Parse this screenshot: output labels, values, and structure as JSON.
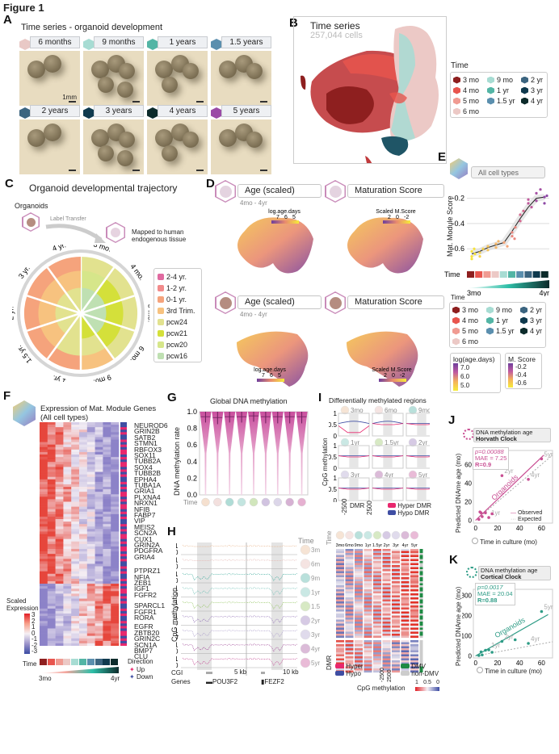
{
  "figure_title": "Figure 1",
  "panels": {
    "A": {
      "label": "A",
      "title": "Time series - organoid development",
      "scale_label": "1mm",
      "timepoints": [
        {
          "label": "6 months",
          "color": "#e9c9c6"
        },
        {
          "label": "9 months",
          "color": "#a7dcd3"
        },
        {
          "label": "1 years",
          "color": "#53b5a5"
        },
        {
          "label": "1.5 years",
          "color": "#5b8fae"
        },
        {
          "label": "2 years",
          "color": "#3c6580"
        },
        {
          "label": "3 years",
          "color": "#0f3a4e"
        },
        {
          "label": "4 years",
          "color": "#0c2b2b"
        },
        {
          "label": "5 years",
          "color": "#9b4aa6"
        }
      ]
    },
    "B": {
      "label": "B",
      "title": "Time series",
      "subtitle": "257,044 cells",
      "legend_title": "Time",
      "legend": [
        {
          "label": "3 mo",
          "color": "#8e1f1f"
        },
        {
          "label": "4 mo",
          "color": "#e8554e"
        },
        {
          "label": "5 mo",
          "color": "#f09b92"
        },
        {
          "label": "6 mo",
          "color": "#ecc9c6"
        },
        {
          "label": "9 mo",
          "color": "#a7dcd3"
        },
        {
          "label": "1 yr",
          "color": "#53b5a5"
        },
        {
          "label": "1.5 yr",
          "color": "#5b8fae"
        },
        {
          "label": "2 yr",
          "color": "#3c6580"
        },
        {
          "label": "3 yr",
          "color": "#0f3a4e"
        },
        {
          "label": "4 yr",
          "color": "#0c2b2b"
        }
      ]
    },
    "C": {
      "label": "C",
      "title": "Organoid developmental trajectory",
      "organoids_label": "Organoids",
      "transfer_label": "Label Transfer",
      "mapped_label": "Mapped to human endogenous tissue",
      "ring_labels": [
        "3 mo.",
        "4 mo.",
        "5 mo.",
        "6 mo.",
        "9 mo.",
        "1 yr.",
        "1.5 yr.",
        "2 yr.",
        "3 yr.",
        "4 yr."
      ],
      "legend": [
        {
          "label": "2-4 yr.",
          "color": "#e06aa0"
        },
        {
          "label": "1-2 yr.",
          "color": "#f28b8b"
        },
        {
          "label": "0-1 yr.",
          "color": "#f5a37c"
        },
        {
          "label": "3rd Trim.",
          "color": "#f7c27f"
        },
        {
          "label": "pcw24",
          "color": "#e2e28f"
        },
        {
          "label": "pcw21",
          "color": "#d4e03a"
        },
        {
          "label": "pcw20",
          "color": "#d6e68a"
        },
        {
          "label": "pcw16",
          "color": "#bfe0b2"
        }
      ]
    },
    "D": {
      "label": "D",
      "rows": [
        {
          "left_title": "Age (scaled)",
          "left_sub": "4mo - 4yr",
          "right_title": "Maturation Score",
          "left_scale_title": "log.age.days",
          "left_ticks": [
            "7",
            "6",
            "5"
          ],
          "right_scale_title": "Scaled M.Score",
          "right_ticks": [
            "2",
            "0",
            "-2"
          ]
        },
        {
          "left_title": "Age (scaled)",
          "left_sub": "4mo - 4yr",
          "right_title": "Maturation Score",
          "left_scale_title": "log.age.days",
          "left_ticks": [
            "7",
            "6",
            "5"
          ],
          "right_scale_title": "Scaled M.Score",
          "right_ticks": [
            "2",
            "0",
            "-2"
          ]
        }
      ],
      "legend_time_title": "Time",
      "age_legend_title": "log(age.days)",
      "age_legend_ticks": [
        "7.0",
        "6.0",
        "5.0"
      ],
      "score_legend_title": "M. Score",
      "score_legend_ticks": [
        "-0.2",
        "-0.4",
        "-0.6"
      ]
    },
    "E": {
      "label": "E",
      "header": "All cell types",
      "time_label": "Time",
      "gradient_start": "3mo",
      "gradient_end": "4yr"
    },
    "F": {
      "label": "F",
      "title_line1": "Expression of Mat. Module Genes",
      "title_line2": "(All cell types)",
      "genes": [
        "NEUROD6",
        "GRIN2B",
        "SATB2",
        "STMN1",
        "RBFOX3",
        "SOX11",
        "TUBB2A",
        "SOX4",
        "TUBB2B",
        "EPHA4",
        "TUBA1A",
        "GRIA1",
        "PLXNA4",
        "NRXN1",
        "NFIB",
        "FABP7",
        "VIP",
        "MEIS2",
        "SCN2A",
        "CUX1",
        "GRIN2A",
        "PDGFRA",
        "GRIA4",
        "PTPRZ1",
        "NFIA",
        "ZEB1",
        "IGF1",
        "FGFR2",
        "SPARCL1",
        "FGFR1",
        "RORA",
        "EGFR",
        "ZBTB20",
        "GRIN2C",
        "SCN1A",
        "BMP7",
        "CLU"
      ],
      "scale_title_1": "Scaled",
      "scale_title_2": "Expression",
      "scale_ticks": [
        "3",
        "2",
        "1",
        "0",
        "-1",
        "-2",
        "-3"
      ],
      "time_label": "Time",
      "gradient_start": "3mo",
      "gradient_end": "4yr",
      "direction_title": "Direction",
      "direction_up": "Up",
      "direction_down": "Down",
      "up_color": "#e8286e",
      "down_color": "#3f4ea3"
    },
    "G": {
      "label": "G",
      "time_label": "Time"
    },
    "H": {
      "label": "H",
      "ylabel": "CpG methylation",
      "time_title": "Time",
      "rows": [
        "3mo",
        "6mo",
        "9mo",
        "1yr",
        "1.5yr",
        "2yr",
        "3yr",
        "4yr",
        "5yr"
      ],
      "row_colors": [
        "#e8b48a",
        "#e3b3ae",
        "#3aa99a",
        "#6bbfb4",
        "#8fc25a",
        "#8d6bb3",
        "#a99bc9",
        "#9a3f92",
        "#c13f8e"
      ],
      "tick_1": "1",
      "tick_0": "0",
      "cgi_label": "CGI",
      "genes_label": "Genes",
      "scale_left": "5 kb",
      "scale_right": "10 kb",
      "gene_left": "POU3F2",
      "gene_right": "FEZF2"
    },
    "I": {
      "label": "I",
      "title": "Differentially methylated regions",
      "ylabel": "CpG methylation",
      "minis": [
        "3mo",
        "6mo",
        "9mo",
        "1yr",
        "1.5yr",
        "2yr",
        "3yr",
        "4yr",
        "5yr"
      ],
      "yticks": [
        "1",
        "0.5",
        "0"
      ],
      "x_left": "-2500",
      "x_mid": "DMR",
      "x_right": "2500",
      "legend": [
        {
          "label": "Hyper DMR",
          "color": "#e8286e"
        },
        {
          "label": "Hypo DMR",
          "color": "#3f4ea3"
        }
      ],
      "heat_time_label": "Time",
      "heat_columns": [
        "3mo",
        "6mo",
        "9mo",
        "1yr",
        "1.5yr",
        "2yr",
        "3yr",
        "4yr",
        "5yr"
      ],
      "dmr_label": "DMR",
      "hyper": "Hyper",
      "hypo": "Hypo",
      "x_axis_left": "-2500",
      "x_axis_right": "2500",
      "dmv": "DMV",
      "non_dmv": "non-DMV",
      "scale_title": "CpG methylation",
      "scale_ticks": [
        "1",
        "0.5",
        "0"
      ]
    },
    "J": {
      "label": "J",
      "header_line1": "DNA methylation age",
      "header_line2": "Horvath Clock",
      "p": "p=0.00088",
      "mae": "MAE = 7.25",
      "r": "R=0.9",
      "ylabel": "Predicted DNAme age (mo)",
      "xlabel": "Time in culture (mo)",
      "fit_label": "Organoids",
      "legend_observed": "Observed",
      "legend_expected": "Expected",
      "color": "#c94f93"
    },
    "K": {
      "label": "K",
      "header_line1": "DNA methylation age",
      "header_line2": "Cortical Clock",
      "p": "p=0.0017",
      "mae": "MAE = 20.04",
      "r": "R=0.88",
      "ylabel": "Predicted DNAme age (mo)",
      "xlabel": "Time in culture (mo)",
      "fit_label": "Organoids",
      "color": "#2e9c86"
    }
  },
  "chart_data": [
    {
      "id": "E",
      "type": "scatter",
      "title": "",
      "xlabel": "Time",
      "ylabel": "Mat. Module Score",
      "yticks": [
        -0.6,
        -0.4,
        -0.2
      ],
      "ylim": [
        -0.72,
        -0.1
      ],
      "categories": [
        "3 mo",
        "4 mo",
        "5 mo",
        "6 mo",
        "9 mo",
        "1 yr",
        "1.5 yr",
        "2 yr",
        "3 yr",
        "4 yr"
      ],
      "category_colors": [
        "#8e1f1f",
        "#e8554e",
        "#f09b92",
        "#ecc9c6",
        "#a7dcd3",
        "#53b5a5",
        "#5b8fae",
        "#3c6580",
        "#0f3a4e",
        "#0c2b2b"
      ],
      "trend": [
        -0.64,
        -0.62,
        -0.59,
        -0.57,
        -0.55,
        -0.46,
        -0.36,
        -0.27,
        -0.2,
        -0.19
      ],
      "points": [
        {
          "x": 0,
          "y": -0.66
        },
        {
          "x": 0,
          "y": -0.62
        },
        {
          "x": 0,
          "y": -0.68
        },
        {
          "x": 0.2,
          "y": -0.64
        },
        {
          "x": 0.1,
          "y": -0.6
        },
        {
          "x": 1,
          "y": -0.63
        },
        {
          "x": 1,
          "y": -0.66
        },
        {
          "x": 1.2,
          "y": -0.6
        },
        {
          "x": 2,
          "y": -0.58
        },
        {
          "x": 2,
          "y": -0.61
        },
        {
          "x": 3,
          "y": -0.56
        },
        {
          "x": 3,
          "y": -0.59
        },
        {
          "x": 3.1,
          "y": -0.54
        },
        {
          "x": 4,
          "y": -0.55
        },
        {
          "x": 4.2,
          "y": -0.58
        },
        {
          "x": 5,
          "y": -0.47
        },
        {
          "x": 5,
          "y": -0.5
        },
        {
          "x": 5.2,
          "y": -0.43
        },
        {
          "x": 5.1,
          "y": -0.52
        },
        {
          "x": 6,
          "y": -0.33
        },
        {
          "x": 6,
          "y": -0.38
        },
        {
          "x": 6.2,
          "y": -0.3
        },
        {
          "x": 7,
          "y": -0.24
        },
        {
          "x": 7,
          "y": -0.21
        },
        {
          "x": 7.2,
          "y": -0.27
        },
        {
          "x": 8,
          "y": -0.16
        },
        {
          "x": 8,
          "y": -0.22
        },
        {
          "x": 8.3,
          "y": -0.13
        },
        {
          "x": 9,
          "y": -0.19
        },
        {
          "x": 9,
          "y": -0.24
        },
        {
          "x": 9.1,
          "y": -0.18
        }
      ]
    },
    {
      "id": "G",
      "type": "violin",
      "title": "Global DNA methylation",
      "ylabel": "DNA methylation rate",
      "categories": [
        "3mo",
        "6mo",
        "9mo",
        "1yr",
        "1.5yr",
        "2yr",
        "3yr",
        "4yr",
        "5yr"
      ],
      "yticks": [
        0.0,
        0.2,
        0.4,
        0.6,
        0.8,
        1.0
      ],
      "ylim": [
        0,
        1.0
      ],
      "medians": [
        0.94,
        0.93,
        0.94,
        0.94,
        0.95,
        0.94,
        0.94,
        0.94,
        0.94
      ],
      "q1": [
        0.87,
        0.85,
        0.87,
        0.87,
        0.88,
        0.86,
        0.86,
        0.86,
        0.86
      ]
    },
    {
      "id": "J",
      "type": "scatter",
      "title": "DNA methylation age - Horvath Clock",
      "xlabel": "Time in culture (mo)",
      "ylabel": "Predicted DNAme age (mo)",
      "xticks": [
        0,
        20,
        40,
        60
      ],
      "yticks": [
        0,
        20,
        40,
        60
      ],
      "xlim": [
        -2,
        70
      ],
      "ylim": [
        -3,
        75
      ],
      "points": [
        {
          "x": 3,
          "y": 1
        },
        {
          "x": 4,
          "y": 9
        },
        {
          "x": 5,
          "y": 8
        },
        {
          "x": 6,
          "y": 4
        },
        {
          "x": 9,
          "y": 8
        },
        {
          "x": 12,
          "y": 3,
          "label": "1yr"
        },
        {
          "x": 15,
          "y": 7
        },
        {
          "x": 24,
          "y": 48,
          "label": "2yr"
        },
        {
          "x": 48,
          "y": 44,
          "label": "4yr"
        },
        {
          "x": 60,
          "y": 66,
          "label": "5yr"
        }
      ],
      "fit": [
        [
          0,
          0
        ],
        [
          62,
          70
        ]
      ],
      "expected": [
        [
          0,
          0
        ],
        [
          70,
          70
        ]
      ]
    },
    {
      "id": "K",
      "type": "scatter",
      "title": "DNA methylation age - Cortical Clock",
      "xlabel": "Time in culture (mo)",
      "ylabel": "Predicted DNAme age (mo)",
      "xticks": [
        0,
        20,
        40,
        60
      ],
      "yticks": [
        0,
        100,
        200,
        300
      ],
      "xlim": [
        -2,
        70
      ],
      "ylim": [
        -10,
        330
      ],
      "points": [
        {
          "x": 3,
          "y": 2
        },
        {
          "x": 5,
          "y": 20
        },
        {
          "x": 6,
          "y": 5
        },
        {
          "x": 9,
          "y": 28
        },
        {
          "x": 12,
          "y": 30,
          "label": "1yr"
        },
        {
          "x": 15,
          "y": 18
        },
        {
          "x": 24,
          "y": 72,
          "label": "2yr"
        },
        {
          "x": 36,
          "y": 80
        },
        {
          "x": 48,
          "y": 62,
          "label": "4yr"
        },
        {
          "x": 60,
          "y": 220,
          "label": "5yr"
        }
      ],
      "fit": [
        [
          0,
          0
        ],
        [
          66,
          205
        ]
      ],
      "expected": [
        [
          0,
          0
        ],
        [
          70,
          70
        ]
      ]
    }
  ]
}
